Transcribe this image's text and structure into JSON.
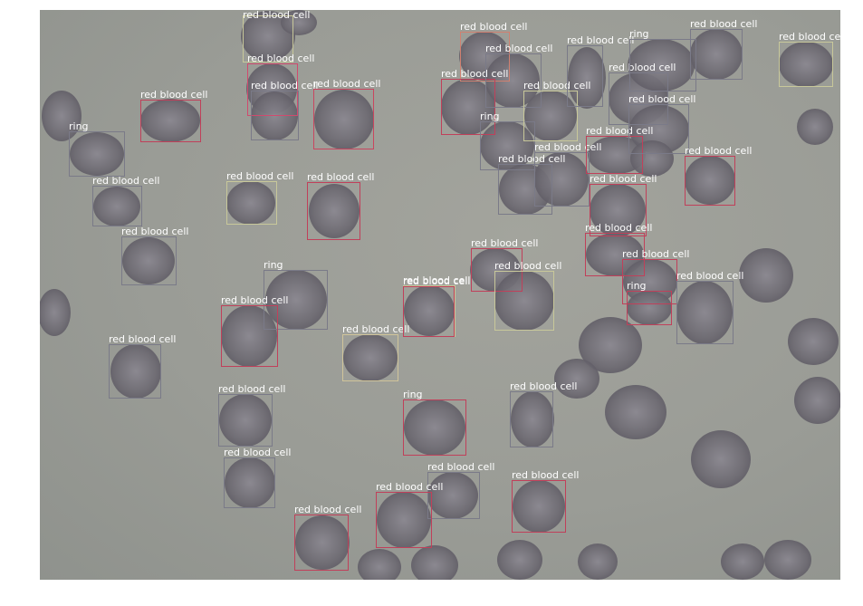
{
  "image": {
    "description_colors": {
      "background": "#9a9c96",
      "cell_fill": "#6d6a72",
      "cell_dark": "#4e4a55"
    }
  },
  "detections": [
    {
      "label": "red blood cell",
      "color": "#c8c89a"
    },
    {
      "label": "red blood cell",
      "color": "#d04a6e"
    },
    {
      "label": "red blood cell",
      "color": "#7a7a88"
    },
    {
      "label": "red blood cell",
      "color": "#c9465f"
    },
    {
      "label": "red blood cell",
      "color": "#c0405a"
    },
    {
      "label": "ring",
      "color": "#7a7a88"
    },
    {
      "label": "red blood cell",
      "color": "#7a7a88"
    },
    {
      "label": "red blood cell",
      "color": "#c8c89a"
    },
    {
      "label": "red blood cell",
      "color": "#c0405a"
    },
    {
      "label": "red blood cell",
      "color": "#7a7a88"
    },
    {
      "label": "ring",
      "color": "#7a7a88"
    },
    {
      "label": "red blood cell",
      "color": "#c0405a"
    },
    {
      "label": "red blood cell",
      "color": "#7a7a88"
    },
    {
      "label": "red blood cell",
      "color": "#d0c49a"
    },
    {
      "label": "red blood cell",
      "color": "#7a7a88"
    },
    {
      "label": "red blood cell",
      "color": "#c8c89a"
    },
    {
      "label": "red blood cell",
      "color": "#7a7a88"
    },
    {
      "label": "red blood cell",
      "color": "#c0405a"
    },
    {
      "label": "ring",
      "color": "#c0405a"
    },
    {
      "label": "red blood cell",
      "color": "#7a7a88"
    },
    {
      "label": "red blood cell",
      "color": "#c0405a"
    },
    {
      "label": "red blood cell",
      "color": "#c0405a"
    },
    {
      "label": "red blood cell",
      "color": "#7a7a88"
    },
    {
      "label": "red blood cell",
      "color": "#d08070"
    },
    {
      "label": "red blood cell",
      "color": "#c0405a"
    },
    {
      "label": "red blood cell",
      "color": "#7a7a88"
    },
    {
      "label": "ring",
      "color": "#7a7a88"
    },
    {
      "label": "red blood cell",
      "color": "#7a7a88"
    },
    {
      "label": "red blood cell",
      "color": "#c8c89a"
    },
    {
      "label": "red blood cell",
      "color": "#7a7a88"
    },
    {
      "label": "red blood cell",
      "color": "#7a7a88"
    },
    {
      "label": "red blood cell",
      "color": "#c0405a"
    },
    {
      "label": "red blood cell",
      "color": "#c0405a"
    },
    {
      "label": "red blood cell",
      "color": "#c0405a"
    },
    {
      "label": "red blood cell",
      "color": "#c8c89a"
    },
    {
      "label": "red blood cell",
      "color": "#c0405a"
    },
    {
      "label": "red blood cell",
      "color": "#c0405a"
    },
    {
      "label": "red blood cell",
      "color": "#7a7a88"
    },
    {
      "label": "red blood cell",
      "color": "#7a7a88"
    },
    {
      "label": "red blood cell",
      "color": "#c0405a"
    },
    {
      "label": "ring",
      "color": "#7a7a88"
    },
    {
      "label": "red blood cell",
      "color": "#7a7a88"
    },
    {
      "label": "red blood cell",
      "color": "#c8c89a"
    },
    {
      "label": "red blood cell",
      "color": "#c0405a"
    },
    {
      "label": "ring",
      "color": "#c0405a"
    },
    {
      "label": "red blood cell",
      "color": "#7a7a88"
    }
  ]
}
